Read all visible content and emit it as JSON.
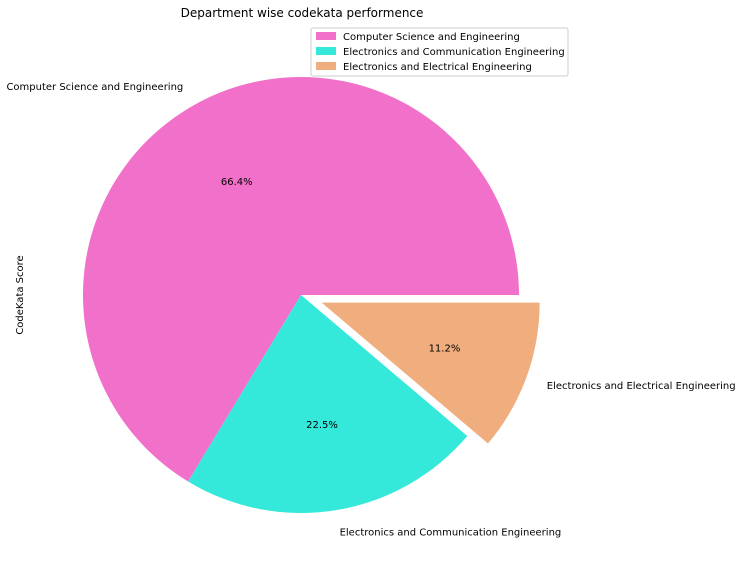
{
  "chart_data": {
    "type": "pie",
    "title": "Department wise codekata performence",
    "ylabel": "CodeKata Score",
    "slices": [
      {
        "label": "Computer Science and Engineering",
        "value": 66.4,
        "pct_label": "66.4%",
        "color": "#f170c9",
        "exploded": false
      },
      {
        "label": "Electronics and Communication Engineering",
        "value": 22.5,
        "pct_label": "22.5%",
        "color": "#35e9da",
        "exploded": false
      },
      {
        "label": "Electronics and Electrical Engineering",
        "value": 11.2,
        "pct_label": "11.2%",
        "color": "#f0ae7e",
        "exploded": true
      }
    ],
    "legend": {
      "placement": "top-right",
      "entries": [
        "Computer Science and Engineering",
        "Electronics and Communication Engineering",
        "Electronics and Electrical Engineering"
      ]
    }
  }
}
